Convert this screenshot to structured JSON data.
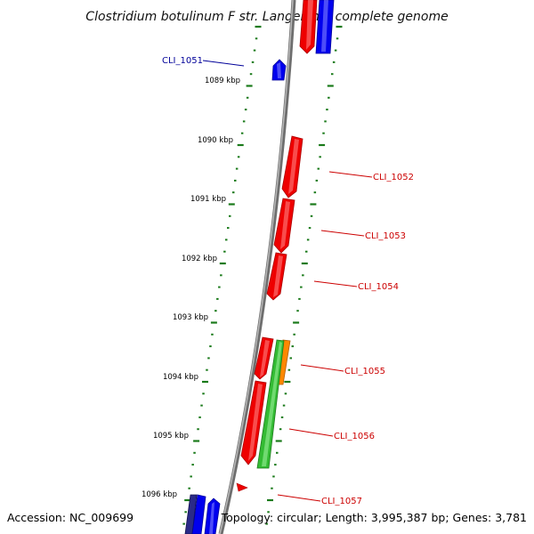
{
  "title": "Clostridium botulinum F str. Langeland, complete genome",
  "footer": {
    "accession": "Accession: NC_009699",
    "summary": "Topology: circular; Length: 3,995,387 bp; Genes: 3,781"
  },
  "colors": {
    "backbone": "#8a8a8a",
    "tick": "#1a7a1a",
    "forward_gene": "#ff0000",
    "reverse_gene": "#0000ff",
    "green_feature": "#44cc44",
    "orange_feature": "#ff8800",
    "dark_feature": "#2a2a88",
    "label_right": "#cc0000",
    "label_left": "#000099"
  },
  "kbp_labels": [
    "1089 kbp",
    "1090 kbp",
    "1091 kbp",
    "1092 kbp",
    "1093 kbp",
    "1094 kbp",
    "1095 kbp",
    "1096 kbp"
  ],
  "gene_labels": [
    "CLI_1051",
    "CLI_1052",
    "CLI_1053",
    "CLI_1054",
    "CLI_1055",
    "CLI_1056",
    "CLI_1057"
  ]
}
